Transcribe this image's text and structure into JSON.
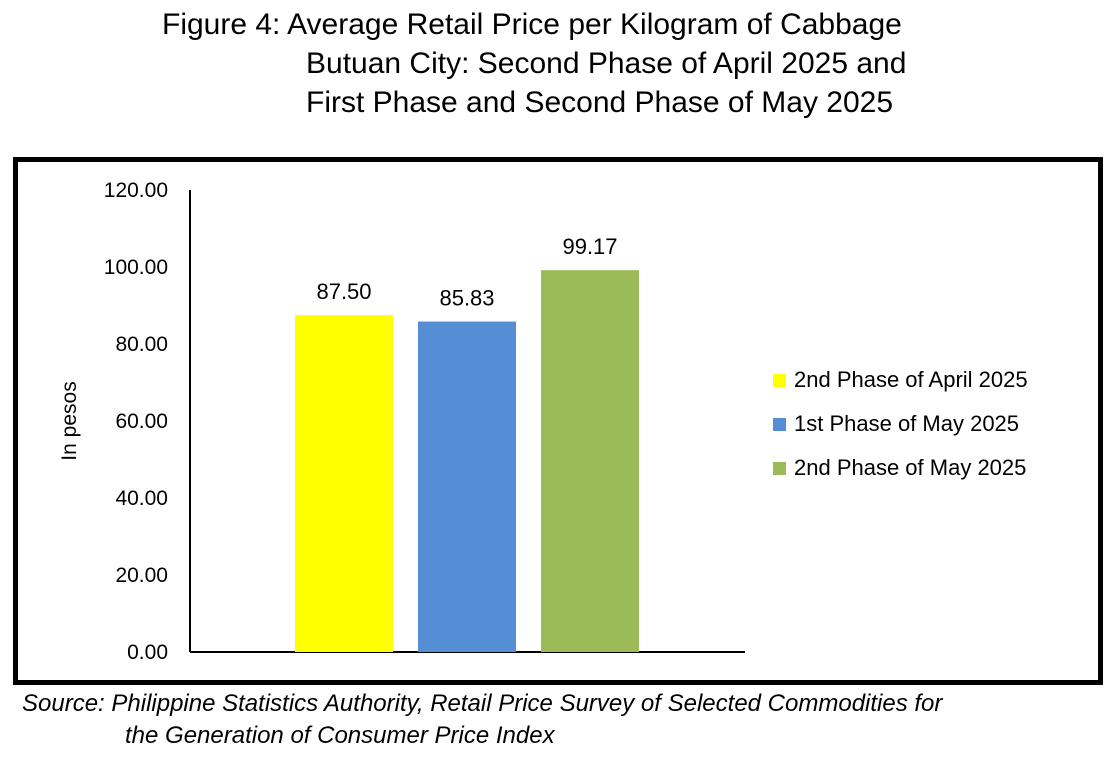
{
  "chart_data": {
    "type": "bar",
    "title": [
      "Figure 4: Average Retail Price per Kilogram of Cabbage",
      "Butuan City: Second Phase of April 2025 and",
      "First Phase and Second Phase of May 2025"
    ],
    "ylabel": "In pesos",
    "ylim": [
      0,
      120
    ],
    "yticks": [
      "0.00",
      "20.00",
      "40.00",
      "60.00",
      "80.00",
      "100.00",
      "120.00"
    ],
    "series": [
      {
        "name": "2nd Phase of April 2025",
        "value": 87.5,
        "label": "87.50",
        "color": "#ffff00"
      },
      {
        "name": "1st Phase of May 2025",
        "value": 85.83,
        "label": "85.83",
        "color": "#558ed5"
      },
      {
        "name": "2nd Phase of May 2025",
        "value": 99.17,
        "label": "99.17",
        "color": "#9bbb59"
      }
    ],
    "legend_position": "right",
    "grid": false
  },
  "source": {
    "line1": "Source: Philippine Statistics Authority, Retail Price Survey of Selected Commodities for",
    "line2": "the Generation of Consumer Price Index"
  }
}
